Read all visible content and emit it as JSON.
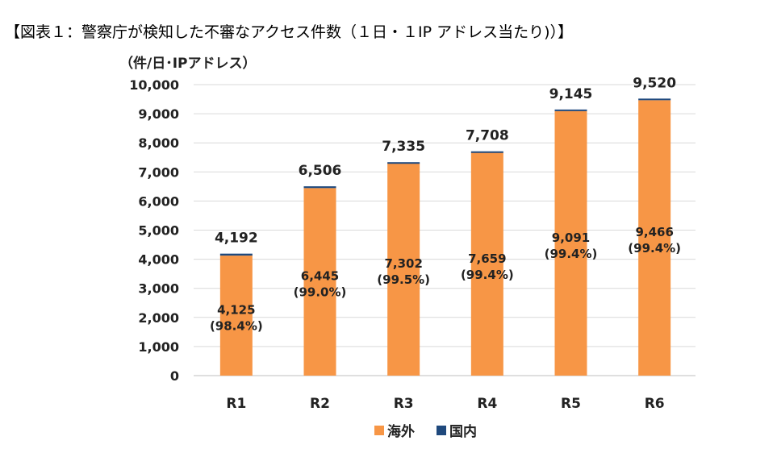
{
  "chart_data": {
    "type": "bar",
    "stacked": true,
    "title": "【図表１：警察庁が検知した不審なアクセス件数（１日・１IP アドレス当たり)）】",
    "ylabel": "（件/日･IPアドレス）",
    "xlabel": "",
    "ylim": [
      0,
      10000
    ],
    "yticks": [
      "0",
      "1,000",
      "2,000",
      "3,000",
      "4,000",
      "5,000",
      "6,000",
      "7,000",
      "8,000",
      "9,000",
      "10,000"
    ],
    "grid": true,
    "legend": "bottom",
    "categories": [
      "R1",
      "R2",
      "R3",
      "R4",
      "R5",
      "R6"
    ],
    "series": [
      {
        "name": "海外",
        "color": "#F79646",
        "values": [
          4125,
          6445,
          7302,
          7659,
          9091,
          9466
        ],
        "labels": [
          "4,125",
          "6,445",
          "7,302",
          "7,659",
          "9,091",
          "9,466"
        ],
        "shares": [
          "(98.4%)",
          "(99.0%)",
          "(99.5%)",
          "(99.4%)",
          "(99.4%)",
          "(99.4%)"
        ]
      },
      {
        "name": "国内",
        "color": "#1F497D",
        "values": [
          67,
          61,
          33,
          49,
          54,
          54
        ]
      }
    ],
    "totals": [
      4192,
      6506,
      7335,
      7708,
      9145,
      9520
    ],
    "total_labels": [
      "4,192",
      "6,506",
      "7,335",
      "7,708",
      "9,145",
      "9,520"
    ]
  }
}
